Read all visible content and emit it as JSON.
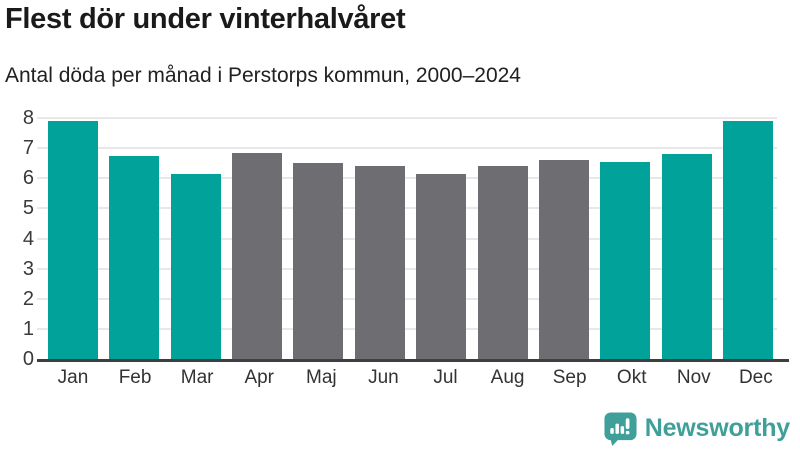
{
  "header": {
    "title": "Flest dör under vinterhalvåret",
    "subtitle": "Antal döda per månad i Perstorps kommun, 2000–2024"
  },
  "chart_data": {
    "type": "bar",
    "title": "Flest dör under vinterhalvåret",
    "subtitle": "Antal döda per månad i Perstorps kommun, 2000–2024",
    "categories": [
      "Jan",
      "Feb",
      "Mar",
      "Apr",
      "Maj",
      "Jun",
      "Jul",
      "Aug",
      "Sep",
      "Okt",
      "Nov",
      "Dec"
    ],
    "values": [
      7.9,
      6.75,
      6.15,
      6.85,
      6.5,
      6.4,
      6.15,
      6.4,
      6.6,
      6.55,
      6.8,
      7.9
    ],
    "bar_groups": [
      "winter",
      "winter",
      "winter",
      "summer",
      "summer",
      "summer",
      "summer",
      "summer",
      "summer",
      "winter",
      "winter",
      "winter"
    ],
    "group_colors": {
      "winter": "#00a29a",
      "summer": "#6e6d72"
    },
    "ylim": [
      0,
      8
    ],
    "yticks": [
      0,
      1,
      2,
      3,
      4,
      5,
      6,
      7,
      8
    ],
    "grid": true,
    "legend": "none",
    "axis_color": "#3e3e40",
    "gridline_color": "#e8e8ea"
  },
  "footer": {
    "brand": "Newsworthy",
    "brand_color": "#3f9f99",
    "logo_icon": "bar-chart-speech-bubble-icon"
  }
}
